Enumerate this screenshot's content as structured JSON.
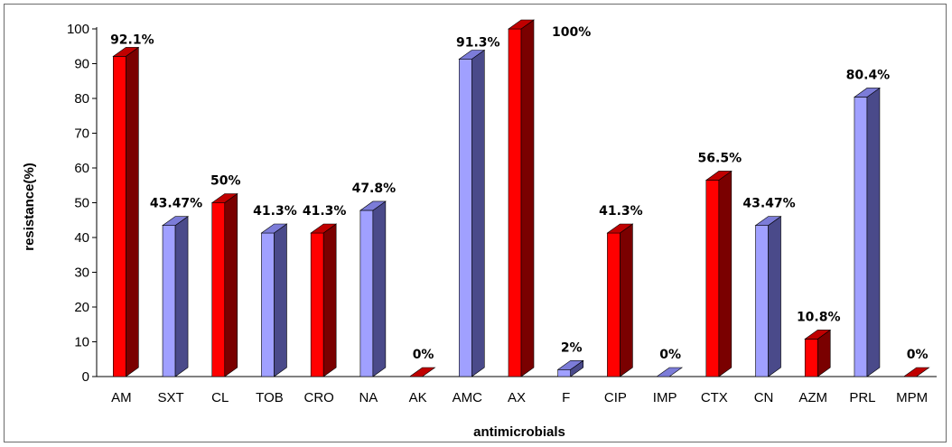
{
  "chart_data": {
    "type": "bar",
    "xlabel": "antimicrobials",
    "ylabel": "resistance(%)",
    "ylim": [
      0,
      100
    ],
    "ytick_step": 10,
    "grid": false,
    "legend": "none",
    "categories": [
      "AM",
      "SXT",
      "CL",
      "TOB",
      "CRO",
      "NA",
      "AK",
      "AMC",
      "AX",
      "F",
      "CIP",
      "IMP",
      "CTX",
      "CN",
      "AZM",
      "PRL",
      "MPM"
    ],
    "values": [
      92.1,
      43.47,
      50,
      41.3,
      41.3,
      47.8,
      0,
      91.3,
      100,
      2,
      41.3,
      0,
      56.5,
      43.47,
      10.8,
      80.4,
      0
    ],
    "data_labels": [
      "92.1%",
      "43.47%",
      "50%",
      "41.3%",
      "41.3%",
      "47.8%",
      "0%",
      "91.3%",
      "100%",
      "2%",
      "41.3%",
      "0%",
      "56.5%",
      "43.47%",
      "10.8%",
      "80.4%",
      "0%"
    ],
    "bar_colors": [
      "red",
      "blue",
      "red",
      "blue",
      "red",
      "blue",
      "red",
      "blue",
      "red",
      "blue",
      "red",
      "blue",
      "red",
      "blue",
      "red",
      "blue",
      "red"
    ]
  },
  "colors": {
    "red_front": "#ff0000",
    "red_side": "#7a0000",
    "red_top": "#c00000",
    "blue_front": "#a0a0ff",
    "blue_side": "#4a4a8a",
    "blue_top": "#7c7cd8",
    "axis": "#000000"
  }
}
